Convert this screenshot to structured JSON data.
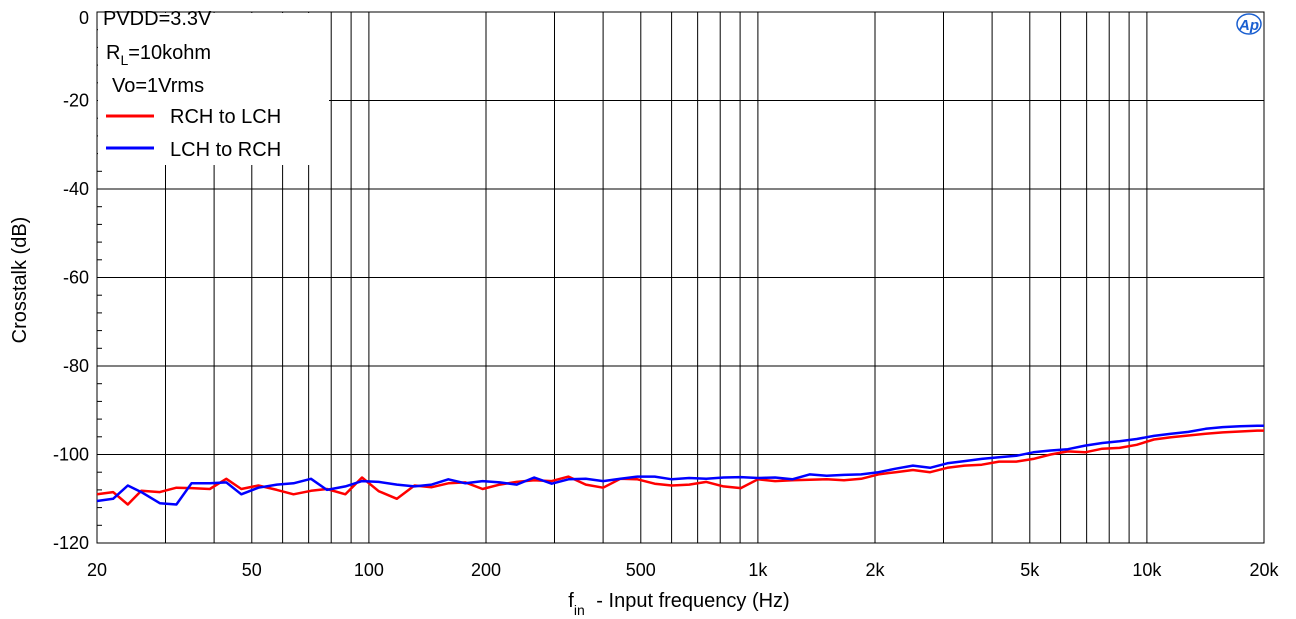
{
  "chart_data": {
    "type": "line",
    "title": "",
    "xlabel_main": "f",
    "xlabel_sub": "in",
    "xlabel_rest": " - Input frequency (Hz)",
    "ylabel": "Crosstalk (dB)",
    "x_scale": "log",
    "xlim": [
      20,
      20000
    ],
    "ylim": [
      -120,
      0
    ],
    "grid": true,
    "x_ticks": [
      {
        "value": 20,
        "label": "20"
      },
      {
        "value": 50,
        "label": "50"
      },
      {
        "value": 100,
        "label": "100"
      },
      {
        "value": 200,
        "label": "200"
      },
      {
        "value": 500,
        "label": "500"
      },
      {
        "value": 1000,
        "label": "1k"
      },
      {
        "value": 2000,
        "label": "2k"
      },
      {
        "value": 5000,
        "label": "5k"
      },
      {
        "value": 10000,
        "label": "10k"
      },
      {
        "value": 20000,
        "label": "20k"
      }
    ],
    "y_ticks": [
      {
        "value": 0,
        "label": "0"
      },
      {
        "value": -20,
        "label": "-20"
      },
      {
        "value": -40,
        "label": "-40"
      },
      {
        "value": -60,
        "label": "-60"
      },
      {
        "value": -80,
        "label": "-80"
      },
      {
        "value": -100,
        "label": "-100"
      },
      {
        "value": -120,
        "label": "-120"
      }
    ],
    "annotations": {
      "line1": "PVDD=3.3V",
      "line2_main": "R",
      "line2_sub": "L",
      "line2_rest": "=10kohm",
      "line3": "Vo=1Vrms"
    },
    "logo": "Ap",
    "legend_position": "top-left",
    "series": [
      {
        "name": "RCH to LCH",
        "color": "#ff0000",
        "x": [
          20,
          22,
          24,
          26,
          29,
          32,
          35,
          39,
          43,
          47,
          52,
          58,
          64,
          71,
          78,
          87,
          96,
          106,
          118,
          131,
          145,
          160,
          177,
          196,
          217,
          240,
          266,
          295,
          326,
          361,
          400,
          443,
          490,
          543,
          601,
          666,
          737,
          816,
          904,
          1000,
          1107,
          1226,
          1358,
          1503,
          1665,
          1843,
          2041,
          2260,
          2503,
          2771,
          3069,
          3398,
          3762,
          4166,
          4613,
          5108,
          5656,
          6263,
          6935,
          7679,
          8502,
          9414,
          10424,
          11543,
          12781,
          14152,
          15670,
          17351,
          19212,
          20000
        ],
        "y": [
          -109.0,
          -108.5,
          -111.3,
          -108.2,
          -108.5,
          -107.5,
          -107.6,
          -107.8,
          -105.5,
          -107.8,
          -107.0,
          -108.0,
          -109.0,
          -108.2,
          -107.8,
          -109.0,
          -105.2,
          -108.3,
          -110.0,
          -107.0,
          -107.4,
          -106.5,
          -106.3,
          -107.8,
          -106.8,
          -106.2,
          -105.8,
          -106.0,
          -105.0,
          -106.8,
          -107.5,
          -105.5,
          -105.6,
          -106.6,
          -107.0,
          -106.8,
          -106.2,
          -107.2,
          -107.6,
          -105.6,
          -106.0,
          -105.8,
          -105.7,
          -105.6,
          -105.8,
          -105.5,
          -104.5,
          -104.0,
          -103.5,
          -104.0,
          -103.0,
          -102.5,
          -102.3,
          -101.6,
          -101.6,
          -101.0,
          -100.0,
          -99.3,
          -99.5,
          -98.7,
          -98.5,
          -97.8,
          -96.6,
          -96.1,
          -95.7,
          -95.3,
          -95.0,
          -94.8,
          -94.6,
          -94.6
        ]
      },
      {
        "name": "LCH to RCH",
        "color": "#0000ff",
        "x": [
          20,
          22,
          24,
          26,
          29,
          32,
          35,
          39,
          43,
          47,
          52,
          58,
          64,
          71,
          78,
          87,
          96,
          106,
          118,
          131,
          145,
          160,
          177,
          196,
          217,
          240,
          266,
          295,
          326,
          361,
          400,
          443,
          490,
          543,
          601,
          666,
          737,
          816,
          904,
          1000,
          1107,
          1226,
          1358,
          1503,
          1665,
          1843,
          2041,
          2260,
          2503,
          2771,
          3069,
          3398,
          3762,
          4166,
          4613,
          5108,
          5656,
          6263,
          6935,
          7679,
          8502,
          9414,
          10424,
          11543,
          12781,
          14152,
          15670,
          17351,
          19212,
          20000
        ],
        "y": [
          -110.5,
          -110.0,
          -107.0,
          -108.5,
          -111.0,
          -111.3,
          -106.5,
          -106.5,
          -106.3,
          -109.0,
          -107.5,
          -106.8,
          -106.5,
          -105.5,
          -108.0,
          -107.2,
          -106.0,
          -106.2,
          -106.8,
          -107.2,
          -106.8,
          -105.6,
          -106.5,
          -106.0,
          -106.3,
          -106.8,
          -105.2,
          -106.6,
          -105.6,
          -105.5,
          -106.0,
          -105.5,
          -105.0,
          -105.0,
          -105.6,
          -105.3,
          -105.5,
          -105.2,
          -105.1,
          -105.3,
          -105.2,
          -105.6,
          -104.5,
          -104.8,
          -104.6,
          -104.5,
          -104.0,
          -103.2,
          -102.5,
          -103.0,
          -102.0,
          -101.5,
          -101.0,
          -100.6,
          -100.3,
          -99.5,
          -99.1,
          -98.8,
          -98.0,
          -97.4,
          -97.0,
          -96.5,
          -95.8,
          -95.3,
          -94.9,
          -94.2,
          -93.8,
          -93.6,
          -93.5,
          -93.5
        ]
      }
    ]
  }
}
